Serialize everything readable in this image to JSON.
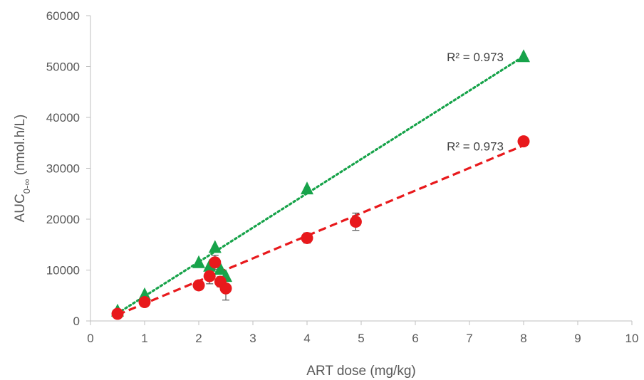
{
  "chart_data": {
    "type": "scatter",
    "title": "",
    "xlabel": "ART dose (mg/kg)",
    "ylabel": {
      "main": "AUC",
      "sub": "0-∞",
      "rest": " (nmol.h/L)"
    },
    "xlim": [
      0,
      10
    ],
    "ylim": [
      0,
      60000
    ],
    "x_ticks": [
      "0",
      "1",
      "2",
      "3",
      "4",
      "5",
      "6",
      "7",
      "8",
      "9",
      "10"
    ],
    "y_ticks": [
      "0",
      "10000",
      "20000",
      "30000",
      "40000",
      "50000",
      "60000"
    ],
    "grid": false,
    "legend": "none",
    "series": [
      {
        "marker": "triangle",
        "color": "#17a34a",
        "trendline": {
          "style": "dotted",
          "r2_label": "R² = 0.973",
          "from": [
            0.5,
            1500
          ],
          "to": [
            8,
            52000
          ]
        },
        "points": [
          {
            "x": 0.5,
            "y": 2000
          },
          {
            "x": 1.0,
            "y": 5200
          },
          {
            "x": 2.0,
            "y": 11500
          },
          {
            "x": 2.3,
            "y": 14500
          },
          {
            "x": 2.2,
            "y": 10800
          },
          {
            "x": 2.4,
            "y": 10200
          },
          {
            "x": 2.5,
            "y": 8800
          },
          {
            "x": 4.0,
            "y": 26000
          },
          {
            "x": 8.0,
            "y": 52000
          }
        ]
      },
      {
        "marker": "circle",
        "color": "#e8191c",
        "trendline": {
          "style": "dashed",
          "r2_label": "R² = 0.973",
          "from": [
            0.5,
            1200
          ],
          "to": [
            8,
            34500
          ]
        },
        "points": [
          {
            "x": 0.5,
            "y": 1400,
            "err": 0
          },
          {
            "x": 1.0,
            "y": 3700,
            "err": 0
          },
          {
            "x": 2.0,
            "y": 7000,
            "err": 0
          },
          {
            "x": 2.2,
            "y": 8800,
            "err": 1500
          },
          {
            "x": 2.3,
            "y": 11500,
            "err": 1400
          },
          {
            "x": 2.4,
            "y": 7700,
            "err": 1000
          },
          {
            "x": 2.5,
            "y": 6400,
            "err": 2300
          },
          {
            "x": 4.0,
            "y": 16300,
            "err": 1000
          },
          {
            "x": 4.9,
            "y": 19500,
            "err": 1700
          },
          {
            "x": 8.0,
            "y": 35300,
            "err": 0
          }
        ]
      }
    ]
  }
}
